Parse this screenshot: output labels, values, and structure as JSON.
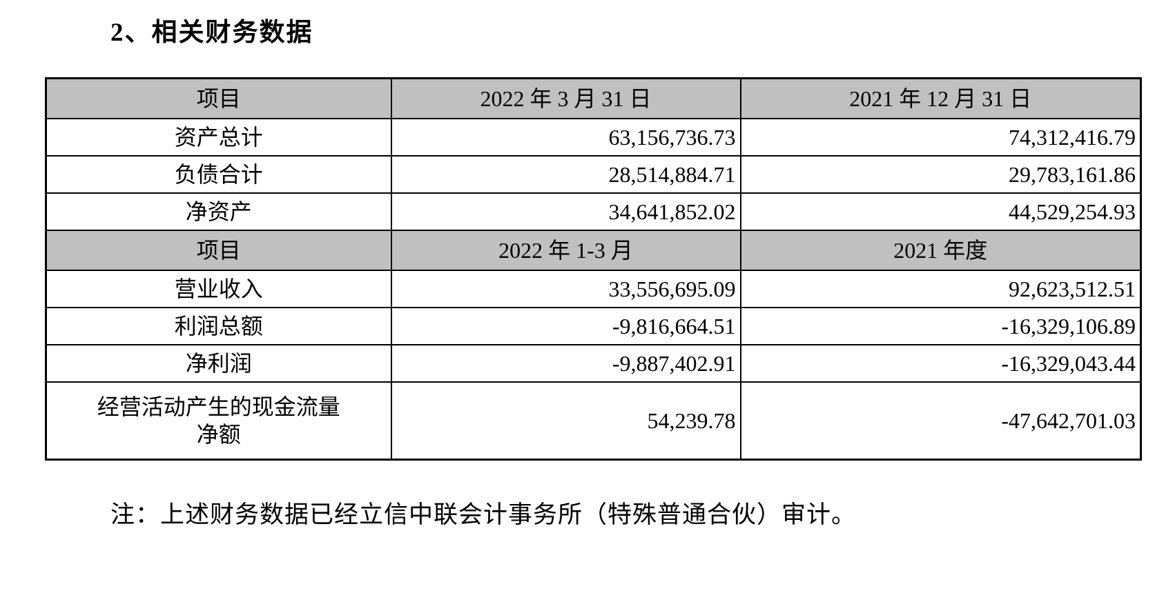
{
  "document": {
    "section_title": "2、相关财务数据",
    "note": "注：上述财务数据已经立信中联会计事务所（特殊普通合伙）审计。"
  },
  "colors": {
    "header_row_bg": "#c0c0c0",
    "border": "#000000",
    "text": "#000000"
  },
  "table": {
    "balance_header": {
      "item": "项目",
      "col1": "2022 年 3 月 31 日",
      "col2": "2021 年 12 月 31 日"
    },
    "balance_rows": [
      {
        "item": "资产总计",
        "col1": "63,156,736.73",
        "col2": "74,312,416.79"
      },
      {
        "item": "负债合计",
        "col1": "28,514,884.71",
        "col2": "29,783,161.86"
      },
      {
        "item": "净资产",
        "col1": "34,641,852.02",
        "col2": "44,529,254.93"
      }
    ],
    "income_header": {
      "item": "项目",
      "col1": "2022 年 1-3 月",
      "col2": "2021 年度"
    },
    "income_rows": [
      {
        "item": "营业收入",
        "col1": "33,556,695.09",
        "col2": "92,623,512.51"
      },
      {
        "item": "利润总额",
        "col1": "-9,816,664.51",
        "col2": "-16,329,106.89"
      },
      {
        "item": "净利润",
        "col1": "-9,887,402.91",
        "col2": "-16,329,043.44"
      },
      {
        "item": "经营活动产生的现金流量\n净额",
        "col1": "54,239.78",
        "col2": "-47,642,701.03"
      }
    ]
  }
}
